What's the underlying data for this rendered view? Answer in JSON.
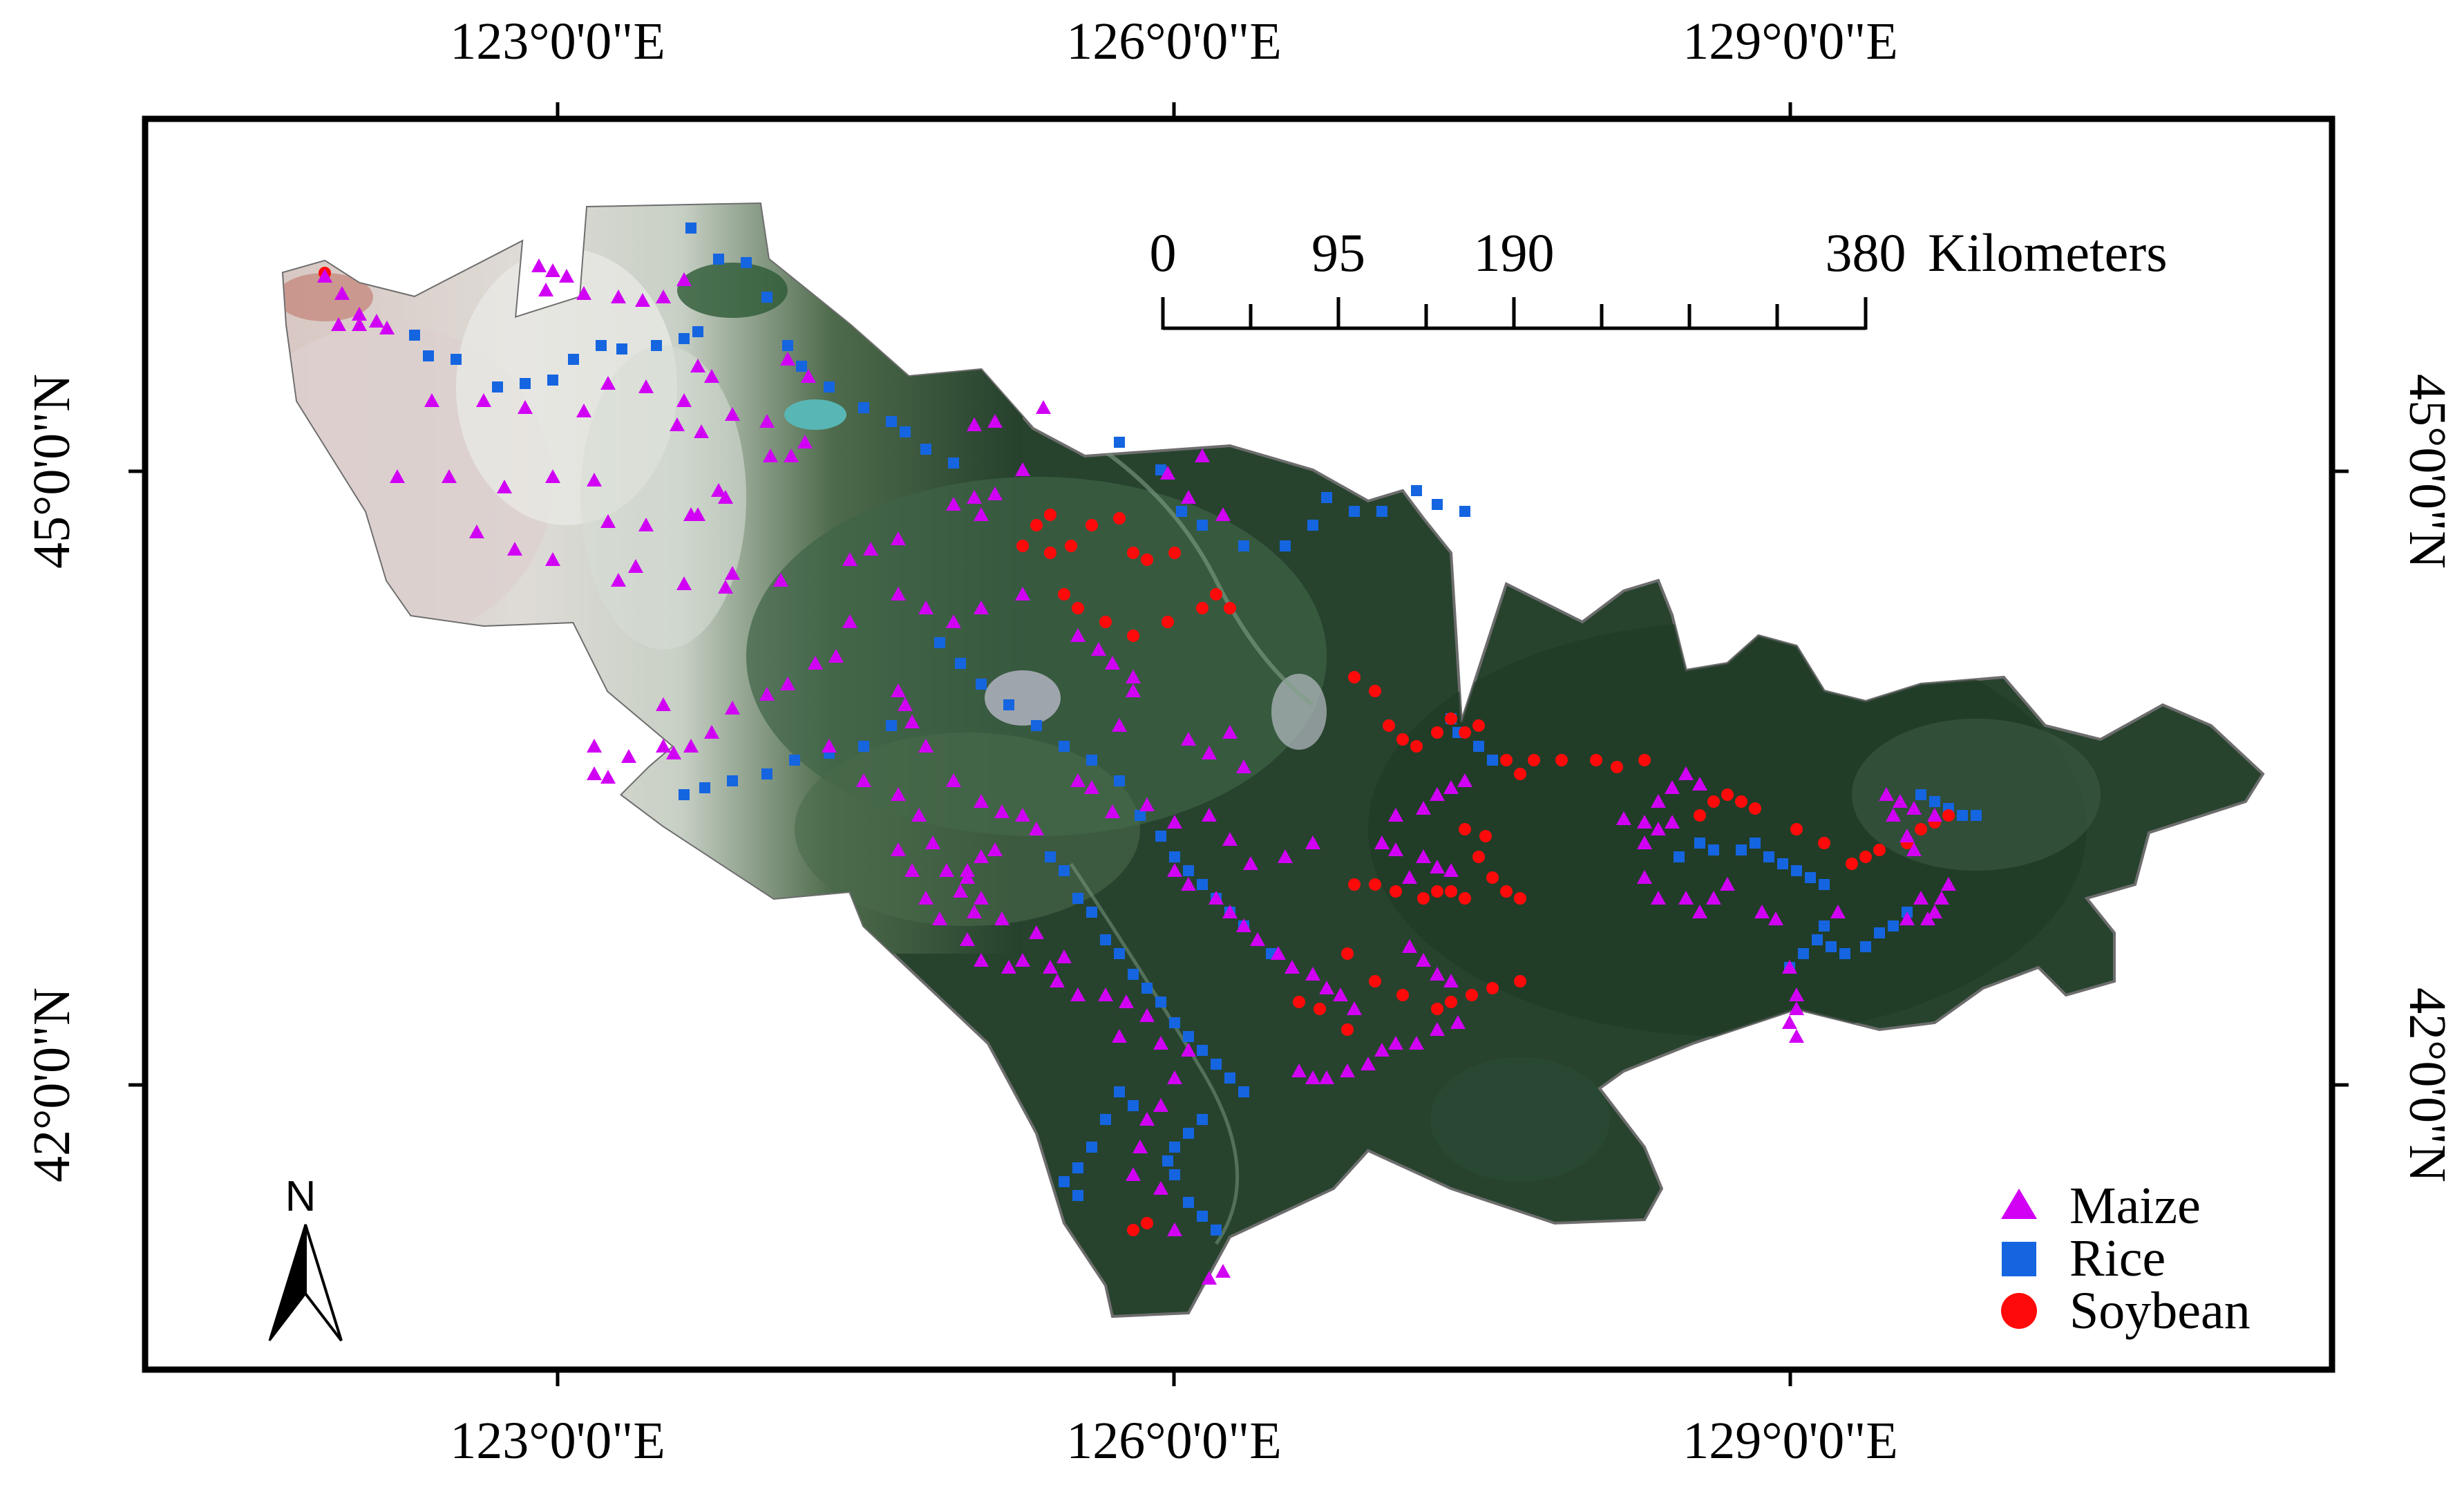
{
  "graticule": {
    "longitude_labels": [
      "123°0'0\"E",
      "126°0'0\"E",
      "129°0'0\"E"
    ],
    "latitude_labels": [
      "45°0'0\"N",
      "42°0'0\"N"
    ]
  },
  "scale_bar": {
    "ticks": [
      "0",
      "95",
      "190",
      "380"
    ],
    "unit": "Kilometers"
  },
  "north_arrow": {
    "label": "N"
  },
  "legend": {
    "items": [
      {
        "label": "Maize",
        "symbol": "triangle",
        "color": "#d100f5"
      },
      {
        "label": "Rice",
        "symbol": "square",
        "color": "#1565e0"
      },
      {
        "label": "Soybean",
        "symbol": "circle",
        "color": "#ff0a0a"
      }
    ]
  },
  "colors": {
    "maize": "#d100f5",
    "rice": "#1565e0",
    "soybean": "#ff0a0a",
    "vegetation": "#2b4a33",
    "cropland": "#c9cfc8"
  }
}
